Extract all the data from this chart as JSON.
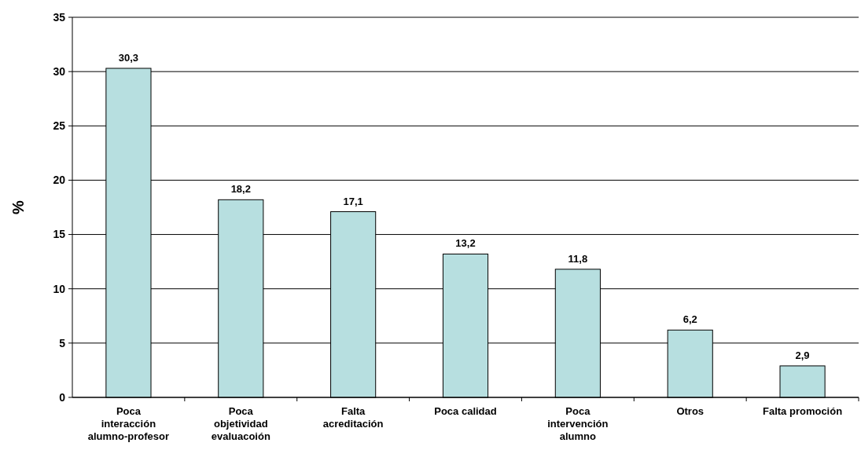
{
  "chart_data": {
    "type": "bar",
    "ylabel": "%",
    "categories": [
      "Poca interacción alumno-profesor",
      "Poca objetividad evaluacoión",
      "Falta acreditación",
      "Poca calidad",
      "Poca intervención alumno",
      "Otros",
      "Falta promoción"
    ],
    "values": [
      30.3,
      18.2,
      17.1,
      13.2,
      11.8,
      6.2,
      2.9
    ],
    "value_labels": [
      "30,3",
      "18,2",
      "17,1",
      "13,2",
      "11,8",
      "6,2",
      "2,9"
    ],
    "color": "#b7dfe0",
    "ylim": [
      0,
      35
    ],
    "yticks": [
      0,
      5,
      10,
      15,
      20,
      25,
      30,
      35
    ],
    "grid": "y"
  }
}
